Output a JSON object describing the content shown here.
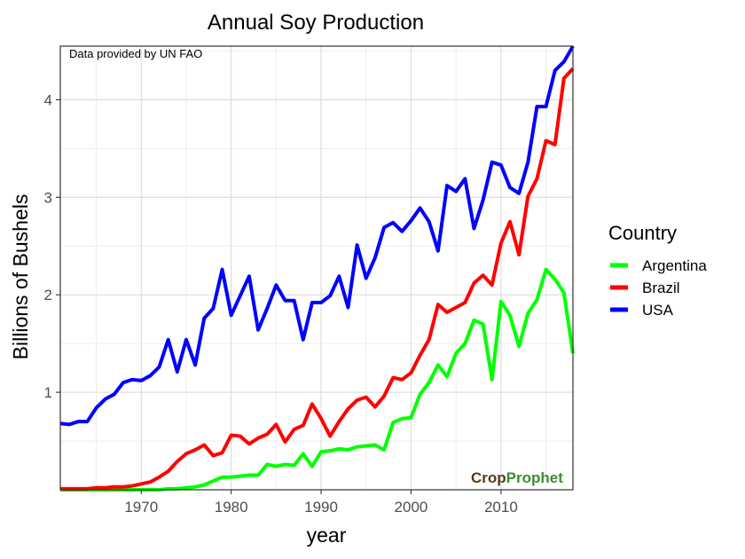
{
  "chart_data": {
    "type": "line",
    "title": "Annual Soy Production",
    "xlabel": "year",
    "ylabel": "Billions of Bushels",
    "xlim": [
      1961,
      2018
    ],
    "ylim": [
      0,
      4.55
    ],
    "xticks": [
      1970,
      1980,
      1990,
      2000,
      2010
    ],
    "yticks": [
      1,
      2,
      3,
      4
    ],
    "grid": true,
    "annotation": "Data provided by UN FAO",
    "logo": {
      "part1": "Crop",
      "part2": "Prophet"
    },
    "legend": {
      "title": "Country",
      "placement": "right"
    },
    "x": [
      1961,
      1962,
      1963,
      1964,
      1965,
      1966,
      1967,
      1968,
      1969,
      1970,
      1971,
      1972,
      1973,
      1974,
      1975,
      1976,
      1977,
      1978,
      1979,
      1980,
      1981,
      1982,
      1983,
      1984,
      1985,
      1986,
      1987,
      1988,
      1989,
      1990,
      1991,
      1992,
      1993,
      1994,
      1995,
      1996,
      1997,
      1998,
      1999,
      2000,
      2001,
      2002,
      2003,
      2004,
      2005,
      2006,
      2007,
      2008,
      2009,
      2010,
      2011,
      2012,
      2013,
      2014,
      2015,
      2016,
      2017,
      2018
    ],
    "series": [
      {
        "name": "Argentina",
        "color": "#00ff00",
        "values": [
          0.0,
          0.0,
          0.0,
          0.0,
          0.0,
          0.0,
          0.0,
          0.0,
          0.0,
          0.0,
          0.0,
          0.0,
          0.01,
          0.01,
          0.02,
          0.03,
          0.05,
          0.09,
          0.13,
          0.13,
          0.14,
          0.15,
          0.15,
          0.26,
          0.24,
          0.26,
          0.25,
          0.37,
          0.24,
          0.39,
          0.4,
          0.42,
          0.41,
          0.44,
          0.45,
          0.46,
          0.41,
          0.69,
          0.73,
          0.74,
          0.98,
          1.1,
          1.28,
          1.16,
          1.4,
          1.5,
          1.74,
          1.7,
          1.13,
          1.93,
          1.79,
          1.47,
          1.81,
          1.95,
          2.26,
          2.16,
          2.02,
          1.4
        ]
      },
      {
        "name": "Brazil",
        "color": "#ff0000",
        "values": [
          0.01,
          0.01,
          0.01,
          0.01,
          0.02,
          0.02,
          0.03,
          0.03,
          0.04,
          0.06,
          0.08,
          0.13,
          0.19,
          0.29,
          0.37,
          0.41,
          0.46,
          0.35,
          0.38,
          0.56,
          0.55,
          0.47,
          0.53,
          0.57,
          0.67,
          0.49,
          0.62,
          0.66,
          0.88,
          0.73,
          0.55,
          0.7,
          0.83,
          0.92,
          0.95,
          0.85,
          0.96,
          1.15,
          1.13,
          1.2,
          1.38,
          1.54,
          1.9,
          1.82,
          1.87,
          1.92,
          2.12,
          2.2,
          2.1,
          2.53,
          2.75,
          2.41,
          3.01,
          3.19,
          3.58,
          3.54,
          4.22,
          4.32
        ]
      },
      {
        "name": "USA",
        "color": "#0000ff",
        "values": [
          0.68,
          0.67,
          0.7,
          0.7,
          0.84,
          0.93,
          0.98,
          1.1,
          1.13,
          1.12,
          1.17,
          1.26,
          1.54,
          1.21,
          1.54,
          1.28,
          1.76,
          1.86,
          2.26,
          1.79,
          1.99,
          2.19,
          1.64,
          1.86,
          2.1,
          1.94,
          1.94,
          1.54,
          1.92,
          1.92,
          1.99,
          2.19,
          1.87,
          2.51,
          2.17,
          2.38,
          2.69,
          2.74,
          2.65,
          2.76,
          2.89,
          2.75,
          2.45,
          3.12,
          3.06,
          3.19,
          2.68,
          2.97,
          3.36,
          3.33,
          3.1,
          3.04,
          3.36,
          3.93,
          3.93,
          4.3,
          4.39,
          4.55
        ]
      }
    ]
  }
}
